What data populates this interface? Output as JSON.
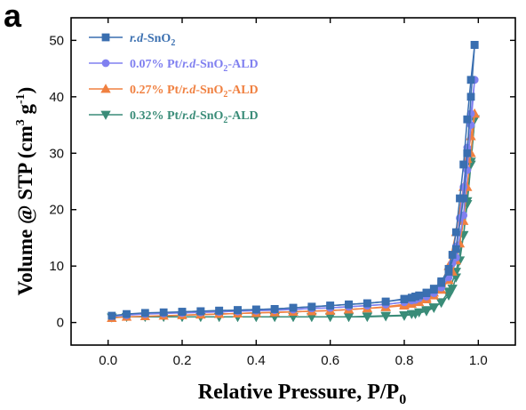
{
  "panel_label": "a",
  "colors": {
    "series_0": "#3a6fb0",
    "series_1": "#8080f0",
    "series_2": "#f08040",
    "series_3": "#3a8c78"
  },
  "chart_data": {
    "type": "line",
    "xlabel": "Relative Pressure, P/P",
    "xlabel_sub": "0",
    "ylabel": "Volume @ STP (cm",
    "ylabel_sup1": "3",
    "ylabel_mid": " g",
    "ylabel_sup2": "-1",
    "ylabel_end": ")",
    "xlim": [
      -0.1,
      1.1
    ],
    "ylim": [
      -4,
      54
    ],
    "xticks": [
      0.0,
      0.2,
      0.4,
      0.6,
      0.8,
      1.0
    ],
    "xtick_labels": [
      "0.0",
      "0.2",
      "0.4",
      "0.6",
      "0.8",
      "1.0"
    ],
    "yticks": [
      0,
      10,
      20,
      30,
      40,
      50
    ],
    "ytick_labels": [
      "0",
      "10",
      "20",
      "30",
      "40",
      "50"
    ],
    "legend_position": "top-left",
    "series": [
      {
        "name": "r.d-SnO2",
        "legend_parts": [
          [
            "r.d",
            true
          ],
          [
            "-SnO",
            false
          ],
          [
            "2",
            false,
            "sub"
          ]
        ],
        "marker": "square",
        "adsorption": [
          [
            0.01,
            1.2
          ],
          [
            0.05,
            1.5
          ],
          [
            0.1,
            1.7
          ],
          [
            0.15,
            1.8
          ],
          [
            0.2,
            1.9
          ],
          [
            0.25,
            2.0
          ],
          [
            0.3,
            2.1
          ],
          [
            0.35,
            2.2
          ],
          [
            0.4,
            2.3
          ],
          [
            0.45,
            2.4
          ],
          [
            0.5,
            2.6
          ],
          [
            0.55,
            2.8
          ],
          [
            0.6,
            3.0
          ],
          [
            0.65,
            3.2
          ],
          [
            0.7,
            3.4
          ],
          [
            0.75,
            3.7
          ],
          [
            0.8,
            4.2
          ],
          [
            0.83,
            4.6
          ],
          [
            0.86,
            5.2
          ],
          [
            0.88,
            5.8
          ],
          [
            0.9,
            7.0
          ],
          [
            0.92,
            9.0
          ],
          [
            0.94,
            13.0
          ],
          [
            0.96,
            22.0
          ],
          [
            0.97,
            30.0
          ],
          [
            0.98,
            40.0
          ],
          [
            0.99,
            49.2
          ]
        ],
        "desorption": [
          [
            0.99,
            49.2
          ],
          [
            0.98,
            43.0
          ],
          [
            0.97,
            36.0
          ],
          [
            0.96,
            28.0
          ],
          [
            0.95,
            22.0
          ],
          [
            0.94,
            16.0
          ],
          [
            0.93,
            12.0
          ],
          [
            0.92,
            9.5
          ],
          [
            0.9,
            7.3
          ],
          [
            0.88,
            6.0
          ],
          [
            0.86,
            5.3
          ],
          [
            0.84,
            4.8
          ],
          [
            0.82,
            4.4
          ],
          [
            0.8,
            4.1
          ],
          [
            0.75,
            3.7
          ],
          [
            0.7,
            3.4
          ],
          [
            0.65,
            3.2
          ],
          [
            0.6,
            3.0
          ],
          [
            0.55,
            2.8
          ],
          [
            0.5,
            2.6
          ],
          [
            0.45,
            2.4
          ],
          [
            0.4,
            2.3
          ],
          [
            0.35,
            2.2
          ],
          [
            0.3,
            2.1
          ],
          [
            0.25,
            2.0
          ],
          [
            0.2,
            1.9
          ]
        ]
      },
      {
        "name": "0.07% Pt/r.d-SnO2-ALD",
        "legend_parts": [
          [
            "0.07% Pt/",
            false
          ],
          [
            "r.d",
            true
          ],
          [
            "-SnO",
            false
          ],
          [
            "2",
            false,
            "sub"
          ],
          [
            "-ALD",
            false
          ]
        ],
        "marker": "circle",
        "adsorption": [
          [
            0.01,
            1.1
          ],
          [
            0.05,
            1.3
          ],
          [
            0.1,
            1.5
          ],
          [
            0.15,
            1.6
          ],
          [
            0.2,
            1.7
          ],
          [
            0.25,
            1.8
          ],
          [
            0.3,
            1.9
          ],
          [
            0.35,
            2.0
          ],
          [
            0.4,
            2.1
          ],
          [
            0.45,
            2.2
          ],
          [
            0.5,
            2.3
          ],
          [
            0.55,
            2.5
          ],
          [
            0.6,
            2.6
          ],
          [
            0.65,
            2.8
          ],
          [
            0.7,
            3.0
          ],
          [
            0.75,
            3.2
          ],
          [
            0.8,
            3.6
          ],
          [
            0.83,
            4.0
          ],
          [
            0.86,
            4.6
          ],
          [
            0.88,
            5.2
          ],
          [
            0.9,
            6.2
          ],
          [
            0.92,
            8.0
          ],
          [
            0.94,
            11.5
          ],
          [
            0.96,
            19.0
          ],
          [
            0.97,
            27.0
          ],
          [
            0.98,
            35.0
          ],
          [
            0.99,
            43.0
          ]
        ],
        "desorption": [
          [
            0.99,
            43.0
          ],
          [
            0.98,
            37.0
          ],
          [
            0.97,
            31.0
          ],
          [
            0.96,
            24.0
          ],
          [
            0.95,
            18.5
          ],
          [
            0.94,
            13.5
          ],
          [
            0.93,
            10.5
          ],
          [
            0.92,
            8.5
          ],
          [
            0.9,
            6.6
          ],
          [
            0.88,
            5.5
          ],
          [
            0.86,
            4.8
          ],
          [
            0.84,
            4.3
          ],
          [
            0.82,
            3.9
          ],
          [
            0.8,
            3.6
          ],
          [
            0.75,
            3.2
          ],
          [
            0.7,
            3.0
          ],
          [
            0.65,
            2.8
          ],
          [
            0.6,
            2.6
          ],
          [
            0.55,
            2.5
          ],
          [
            0.5,
            2.3
          ],
          [
            0.45,
            2.2
          ],
          [
            0.4,
            2.1
          ],
          [
            0.35,
            2.0
          ],
          [
            0.3,
            1.9
          ],
          [
            0.25,
            1.8
          ],
          [
            0.2,
            1.7
          ]
        ]
      },
      {
        "name": "0.27% Pt/r.d-SnO2-ALD",
        "legend_parts": [
          [
            "0.27% Pt/",
            false
          ],
          [
            "r.d",
            true
          ],
          [
            "-SnO",
            false
          ],
          [
            "2",
            false,
            "sub"
          ],
          [
            "-ALD",
            false
          ]
        ],
        "marker": "triangle-up",
        "adsorption": [
          [
            0.01,
            0.8
          ],
          [
            0.05,
            1.0
          ],
          [
            0.1,
            1.1
          ],
          [
            0.15,
            1.2
          ],
          [
            0.2,
            1.3
          ],
          [
            0.25,
            1.4
          ],
          [
            0.3,
            1.5
          ],
          [
            0.35,
            1.6
          ],
          [
            0.4,
            1.7
          ],
          [
            0.45,
            1.8
          ],
          [
            0.5,
            1.9
          ],
          [
            0.55,
            2.0
          ],
          [
            0.6,
            2.1
          ],
          [
            0.65,
            2.3
          ],
          [
            0.7,
            2.5
          ],
          [
            0.75,
            2.8
          ],
          [
            0.8,
            3.2
          ],
          [
            0.83,
            3.7
          ],
          [
            0.86,
            4.4
          ],
          [
            0.88,
            5.3
          ],
          [
            0.9,
            7.0
          ],
          [
            0.92,
            10.0
          ],
          [
            0.94,
            16.0
          ],
          [
            0.96,
            24.0
          ],
          [
            0.97,
            29.0
          ],
          [
            0.98,
            33.0
          ],
          [
            0.99,
            37.0
          ]
        ],
        "desorption": [
          [
            0.99,
            37.0
          ],
          [
            0.98,
            30.0
          ],
          [
            0.97,
            24.0
          ],
          [
            0.96,
            18.0
          ],
          [
            0.95,
            14.0
          ],
          [
            0.94,
            11.0
          ],
          [
            0.93,
            9.0
          ],
          [
            0.92,
            7.5
          ],
          [
            0.9,
            5.8
          ],
          [
            0.88,
            4.8
          ],
          [
            0.86,
            4.1
          ],
          [
            0.84,
            3.6
          ],
          [
            0.82,
            3.3
          ],
          [
            0.8,
            3.0
          ],
          [
            0.75,
            2.7
          ],
          [
            0.7,
            2.5
          ],
          [
            0.65,
            2.3
          ],
          [
            0.6,
            2.1
          ],
          [
            0.55,
            2.0
          ],
          [
            0.5,
            1.9
          ],
          [
            0.45,
            1.8
          ],
          [
            0.4,
            1.7
          ],
          [
            0.35,
            1.6
          ],
          [
            0.3,
            1.5
          ],
          [
            0.25,
            1.4
          ],
          [
            0.2,
            1.3
          ]
        ]
      },
      {
        "name": "0.32% Pt/r.d-SnO2-ALD",
        "legend_parts": [
          [
            "0.32% Pt/",
            false
          ],
          [
            "r.d",
            true
          ],
          [
            "-SnO",
            false
          ],
          [
            "2",
            false,
            "sub"
          ],
          [
            "-ALD",
            false
          ]
        ],
        "marker": "triangle-down",
        "adsorption": [
          [
            0.01,
            0.9
          ],
          [
            0.05,
            1.0
          ],
          [
            0.1,
            1.0
          ],
          [
            0.15,
            1.0
          ],
          [
            0.2,
            1.0
          ],
          [
            0.25,
            1.0
          ],
          [
            0.3,
            1.0
          ],
          [
            0.35,
            1.0
          ],
          [
            0.4,
            1.0
          ],
          [
            0.45,
            1.0
          ],
          [
            0.5,
            1.0
          ],
          [
            0.55,
            1.0
          ],
          [
            0.6,
            1.0
          ],
          [
            0.65,
            1.0
          ],
          [
            0.7,
            1.0
          ],
          [
            0.75,
            1.1
          ],
          [
            0.8,
            1.2
          ],
          [
            0.83,
            1.5
          ],
          [
            0.86,
            2.0
          ],
          [
            0.88,
            2.6
          ],
          [
            0.9,
            3.6
          ],
          [
            0.92,
            5.5
          ],
          [
            0.94,
            9.0
          ],
          [
            0.96,
            15.5
          ],
          [
            0.97,
            21.0
          ],
          [
            0.98,
            28.0
          ],
          [
            0.99,
            36.0
          ]
        ],
        "desorption": [
          [
            0.99,
            36.0
          ],
          [
            0.98,
            28.5
          ],
          [
            0.97,
            21.5
          ],
          [
            0.96,
            15.5
          ],
          [
            0.95,
            11.0
          ],
          [
            0.94,
            8.0
          ],
          [
            0.93,
            6.0
          ],
          [
            0.92,
            4.8
          ],
          [
            0.9,
            3.5
          ],
          [
            0.88,
            2.7
          ],
          [
            0.86,
            2.2
          ],
          [
            0.84,
            1.8
          ],
          [
            0.82,
            1.5
          ],
          [
            0.8,
            1.3
          ],
          [
            0.75,
            1.2
          ],
          [
            0.7,
            1.1
          ],
          [
            0.65,
            1.0
          ],
          [
            0.6,
            1.0
          ],
          [
            0.55,
            1.0
          ],
          [
            0.5,
            1.0
          ],
          [
            0.45,
            1.0
          ],
          [
            0.4,
            1.0
          ],
          [
            0.35,
            1.0
          ],
          [
            0.3,
            1.0
          ],
          [
            0.25,
            1.0
          ],
          [
            0.2,
            1.0
          ]
        ]
      }
    ]
  }
}
